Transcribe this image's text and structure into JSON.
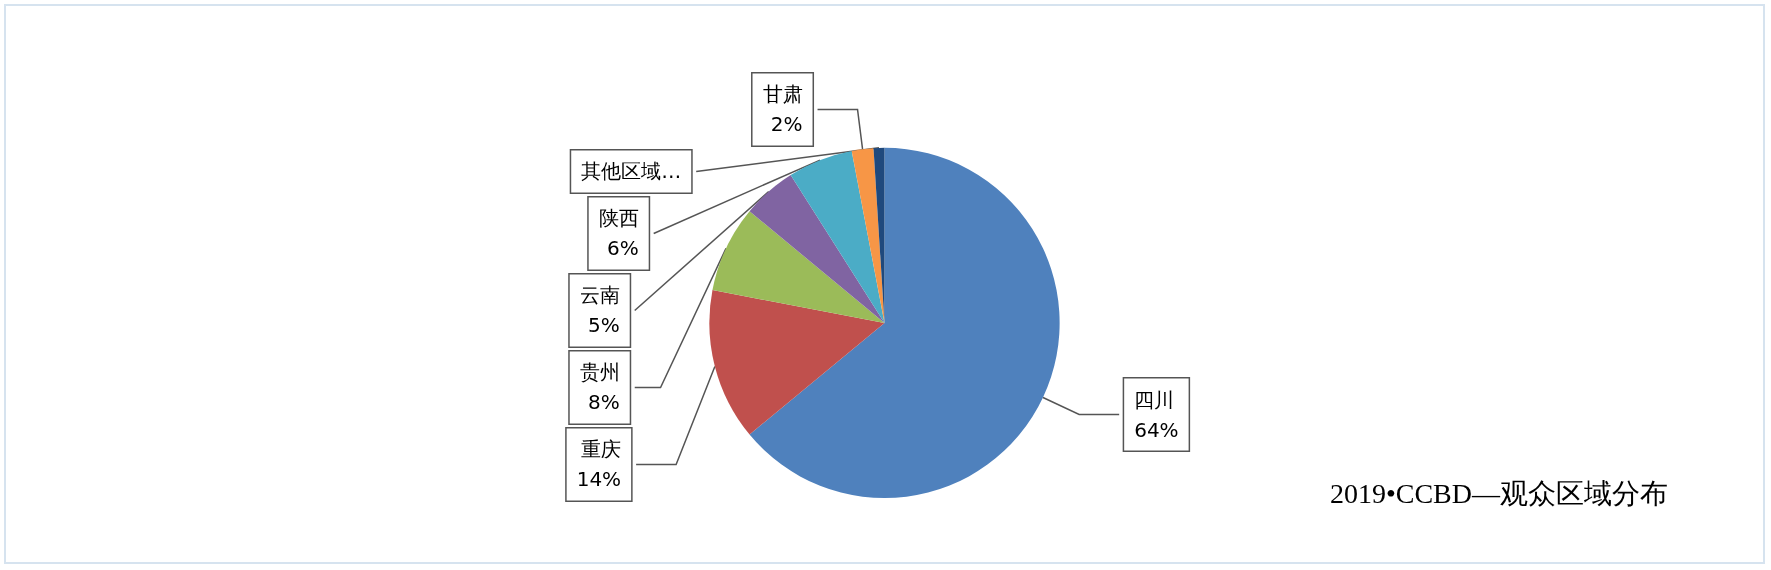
{
  "chart_data": {
    "type": "pie",
    "title": "2019•CCBD—观众区域分布",
    "categories": [
      "四川",
      "重庆",
      "贵州",
      "云南",
      "陕西",
      "甘肃",
      "其他区域…"
    ],
    "values": [
      64,
      14,
      8,
      5,
      6,
      2,
      1
    ],
    "colors": [
      "#4f81bd",
      "#c0504d",
      "#9bbb59",
      "#8064a2",
      "#4bacc6",
      "#f79646",
      "#1f497d"
    ],
    "value_labels": [
      "64%",
      "14%",
      "8%",
      "5%",
      "6%",
      "2%",
      null
    ],
    "legend": false
  }
}
